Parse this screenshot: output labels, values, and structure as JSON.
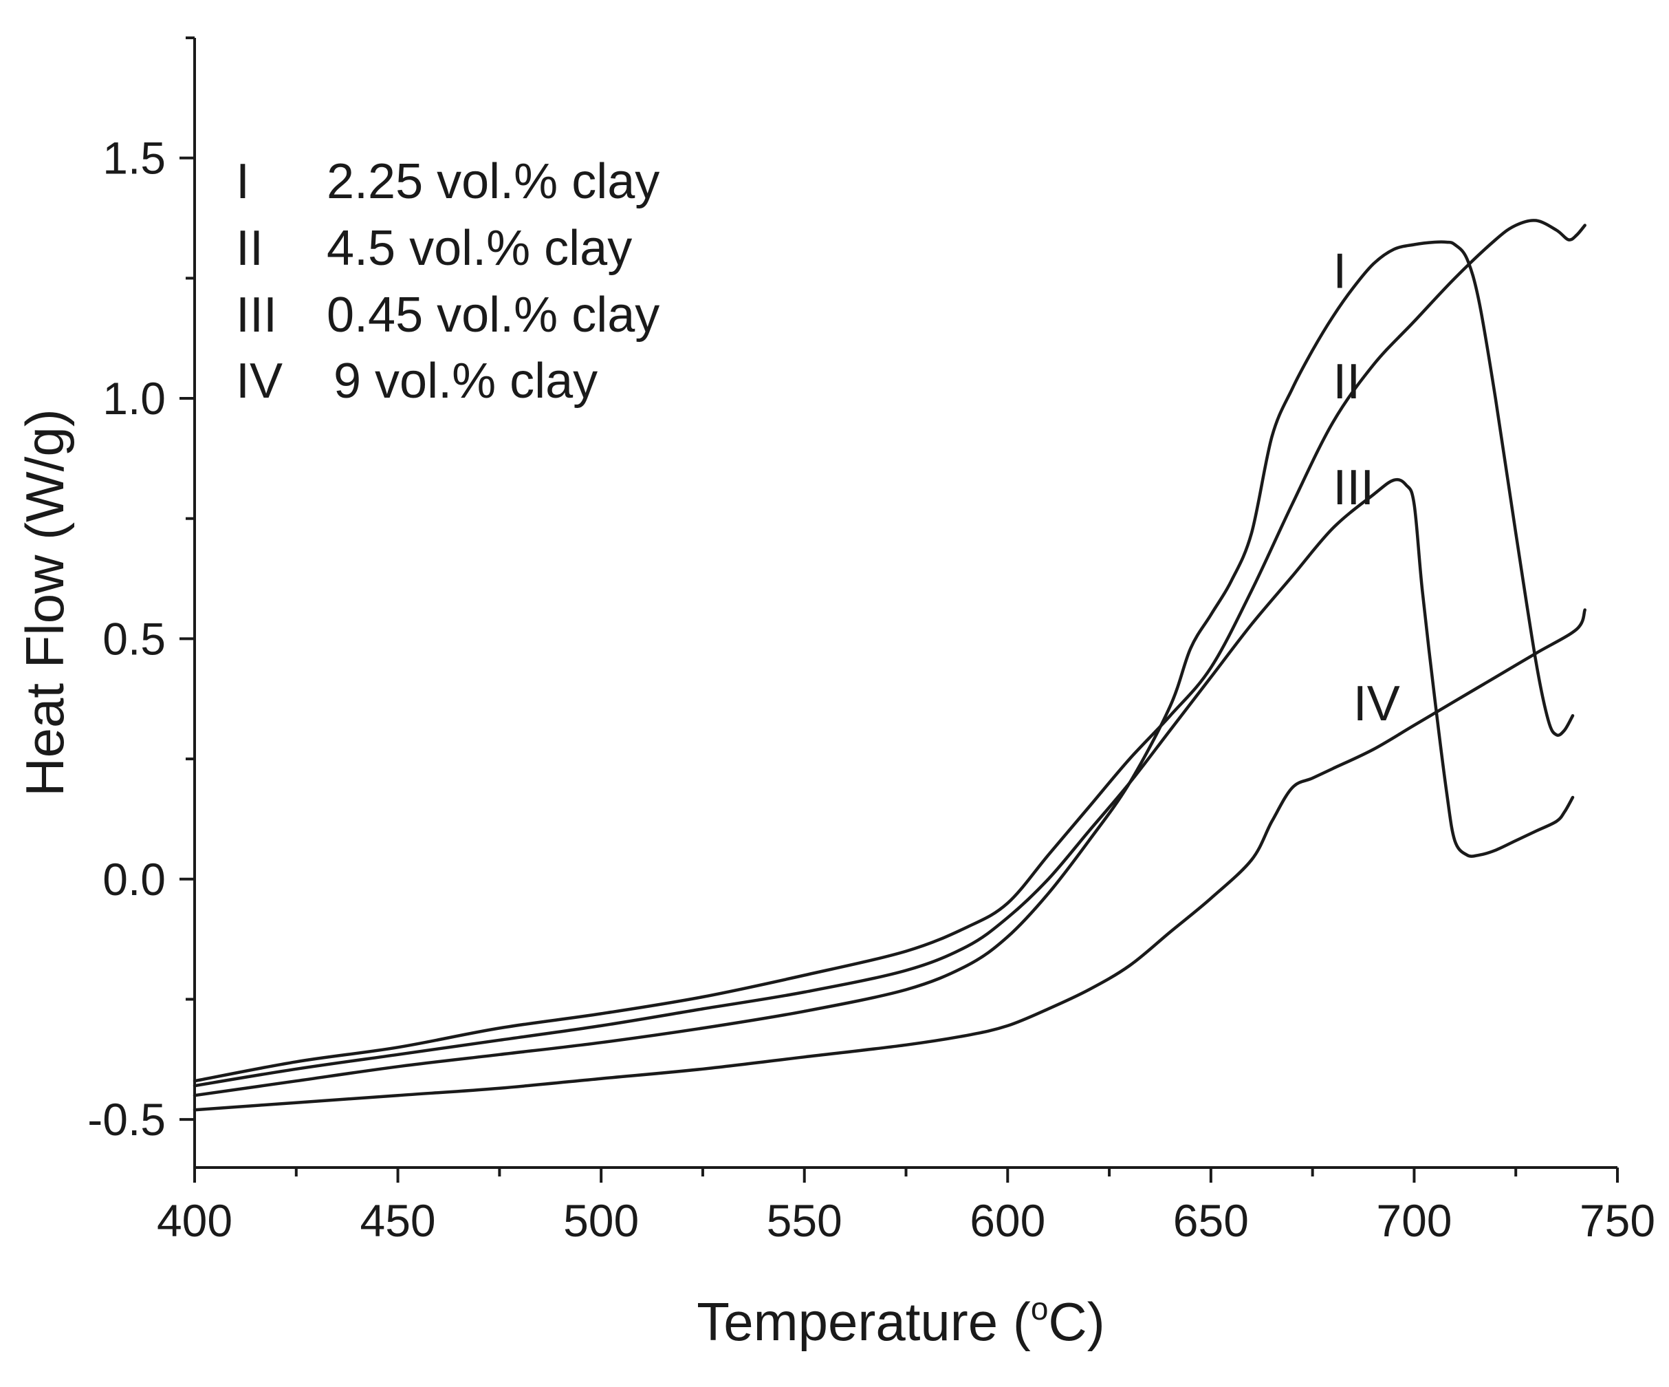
{
  "chart_data": {
    "type": "line",
    "title": "",
    "xlabel": "Temperature (",
    "xlabel_degree": "o",
    "xlabel_unit": "C)",
    "ylabel": "Heat Flow (W/g)",
    "xlim": [
      400,
      750
    ],
    "ylim": [
      -0.6,
      1.75
    ],
    "x_ticks": [
      400,
      450,
      500,
      550,
      600,
      650,
      700,
      750
    ],
    "x_tick_labels": [
      "400",
      "450",
      "500",
      "550",
      "600",
      "650",
      "700",
      "750"
    ],
    "y_ticks": [
      -0.5,
      0.0,
      0.5,
      1.0,
      1.5
    ],
    "y_tick_labels": [
      "-0.5",
      "0.0",
      "0.5",
      "1.0",
      "1.5"
    ],
    "legend": [
      {
        "id": "I",
        "text": "2.25 vol.% clay"
      },
      {
        "id": "II",
        "text": "4.5 vol.% clay"
      },
      {
        "id": "III",
        "text": "0.45 vol.% clay"
      },
      {
        "id": "IV",
        "text": "9 vol.% clay"
      }
    ],
    "series": [
      {
        "name": "I",
        "description": "2.25 vol.% clay",
        "label_at": [
          680,
          1.23
        ],
        "x": [
          400,
          425,
          450,
          475,
          500,
          525,
          550,
          575,
          590,
          600,
          610,
          620,
          630,
          640,
          645,
          650,
          655,
          660,
          665,
          670,
          675,
          680,
          685,
          690,
          695,
          700,
          705,
          708,
          710,
          713,
          716,
          720,
          725,
          730,
          733,
          735,
          737,
          739
        ],
        "y": [
          -0.45,
          -0.42,
          -0.39,
          -0.365,
          -0.34,
          -0.31,
          -0.275,
          -0.23,
          -0.18,
          -0.12,
          -0.03,
          0.08,
          0.2,
          0.36,
          0.48,
          0.55,
          0.62,
          0.72,
          0.92,
          1.02,
          1.1,
          1.17,
          1.23,
          1.28,
          1.31,
          1.32,
          1.325,
          1.325,
          1.32,
          1.29,
          1.2,
          1.0,
          0.72,
          0.45,
          0.33,
          0.3,
          0.31,
          0.34
        ]
      },
      {
        "name": "II",
        "description": "4.5 vol.% clay",
        "label_at": [
          680,
          1.0
        ],
        "x": [
          400,
          425,
          450,
          475,
          500,
          525,
          550,
          575,
          590,
          600,
          610,
          620,
          630,
          640,
          650,
          660,
          670,
          680,
          690,
          700,
          710,
          720,
          725,
          730,
          735,
          738,
          740,
          742
        ],
        "y": [
          -0.42,
          -0.38,
          -0.35,
          -0.31,
          -0.28,
          -0.245,
          -0.2,
          -0.15,
          -0.1,
          -0.05,
          0.05,
          0.15,
          0.25,
          0.34,
          0.44,
          0.6,
          0.78,
          0.95,
          1.07,
          1.16,
          1.25,
          1.33,
          1.36,
          1.37,
          1.35,
          1.33,
          1.34,
          1.36
        ]
      },
      {
        "name": "III",
        "description": "0.45 vol.% clay",
        "label_at": [
          680,
          0.78
        ],
        "x": [
          400,
          425,
          450,
          475,
          500,
          525,
          550,
          575,
          590,
          600,
          610,
          620,
          630,
          640,
          650,
          660,
          670,
          680,
          690,
          695,
          698,
          700,
          702,
          705,
          708,
          710,
          713,
          716,
          720,
          725,
          730,
          735,
          737,
          739
        ],
        "y": [
          -0.43,
          -0.395,
          -0.365,
          -0.335,
          -0.305,
          -0.27,
          -0.235,
          -0.19,
          -0.14,
          -0.08,
          0.0,
          0.1,
          0.2,
          0.31,
          0.42,
          0.53,
          0.63,
          0.73,
          0.8,
          0.83,
          0.82,
          0.78,
          0.6,
          0.38,
          0.18,
          0.08,
          0.05,
          0.05,
          0.06,
          0.08,
          0.1,
          0.12,
          0.14,
          0.17
        ]
      },
      {
        "name": "IV",
        "description": "9 vol.% clay",
        "label_at": [
          685,
          0.33
        ],
        "x": [
          400,
          425,
          450,
          475,
          500,
          525,
          550,
          575,
          590,
          600,
          610,
          620,
          630,
          640,
          650,
          660,
          665,
          670,
          675,
          680,
          690,
          700,
          710,
          720,
          730,
          740,
          742
        ],
        "y": [
          -0.48,
          -0.465,
          -0.45,
          -0.435,
          -0.415,
          -0.395,
          -0.37,
          -0.345,
          -0.325,
          -0.305,
          -0.27,
          -0.23,
          -0.18,
          -0.11,
          -0.04,
          0.04,
          0.12,
          0.19,
          0.21,
          0.23,
          0.27,
          0.32,
          0.37,
          0.42,
          0.47,
          0.52,
          0.56
        ]
      }
    ]
  }
}
